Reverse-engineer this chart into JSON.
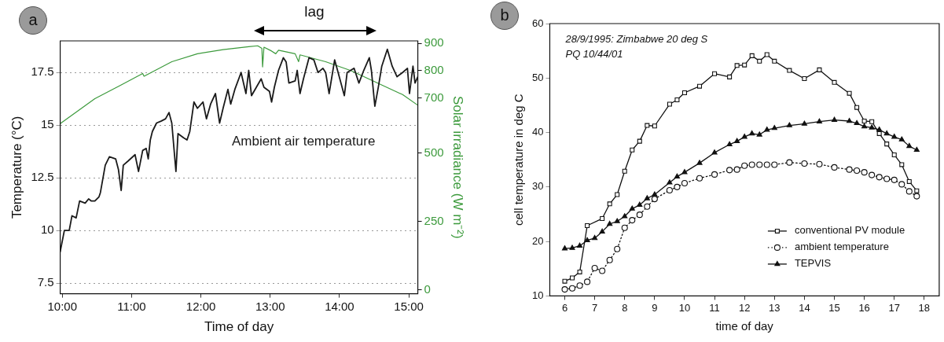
{
  "chart_data": [
    {
      "type": "line",
      "title": "a",
      "xlabel": "Time of day",
      "ylabel": "Temperature (°C)",
      "y2label": "Solar irradiance (W m⁻²)",
      "annotations": [
        "lag"
      ],
      "xlim": [
        9.97,
        15.13
      ],
      "xticks": [
        {
          "value": 10,
          "label": "10:00"
        },
        {
          "value": 11,
          "label": "11:00"
        },
        {
          "value": 12,
          "label": "12:00"
        },
        {
          "value": 13,
          "label": "13:00"
        },
        {
          "value": 14,
          "label": "14:00"
        },
        {
          "value": 15,
          "label": "15:00"
        }
      ],
      "ylim": [
        7,
        19
      ],
      "yticks": [
        7.5,
        10,
        12.5,
        15,
        17.5
      ],
      "y2lim": [
        -14,
        909
      ],
      "y2ticks": [
        0,
        250,
        500,
        700,
        800,
        900
      ],
      "grid": "y",
      "legend": false,
      "marker": "none",
      "series": [
        {
          "name": "Ambient air temperature",
          "color": "#1a1a1a",
          "x": [
            9.97,
            10.03,
            10.1,
            10.14,
            10.2,
            10.25,
            10.33,
            10.38,
            10.42,
            10.47,
            10.53,
            10.55,
            10.62,
            10.68,
            10.77,
            10.81,
            10.85,
            10.88,
            10.95,
            11.05,
            11.1,
            11.16,
            11.21,
            11.24,
            11.27,
            11.3,
            11.36,
            11.43,
            11.49,
            11.54,
            11.58,
            11.64,
            11.67,
            11.75,
            11.8,
            11.84,
            11.9,
            11.95,
            12.03,
            12.08,
            12.14,
            12.21,
            12.27,
            12.32,
            12.39,
            12.43,
            12.49,
            12.58,
            12.65,
            12.69,
            12.73,
            12.8,
            12.87,
            12.91,
            12.99,
            13.02,
            13.06,
            13.12,
            13.19,
            13.23,
            13.27,
            13.36,
            13.39,
            13.43,
            13.48,
            13.56,
            13.63,
            13.69,
            13.76,
            13.8,
            13.85,
            13.93,
            13.98,
            14.07,
            14.11,
            14.21,
            14.28,
            14.35,
            14.43,
            14.46,
            14.51,
            14.56,
            14.61,
            14.69,
            14.76,
            14.83,
            14.91,
            14.98,
            15.01,
            15.06,
            15.09,
            15.13
          ],
          "values": [
            9.0,
            10.0,
            10.0,
            10.7,
            10.6,
            11.4,
            11.3,
            11.5,
            11.4,
            11.4,
            11.6,
            11.8,
            13.1,
            13.5,
            13.4,
            12.9,
            11.9,
            13.1,
            13.3,
            13.6,
            12.8,
            13.8,
            13.9,
            13.4,
            14.3,
            14.7,
            15.1,
            15.2,
            15.3,
            15.6,
            15.1,
            12.8,
            14.6,
            14.4,
            14.3,
            14.7,
            16.1,
            15.8,
            16.1,
            15.3,
            16.0,
            16.5,
            15.1,
            15.8,
            16.7,
            16.0,
            16.7,
            17.5,
            16.5,
            17.6,
            16.4,
            16.8,
            17.2,
            16.8,
            16.6,
            16.1,
            16.8,
            17.6,
            18.2,
            18.0,
            17.0,
            17.1,
            17.6,
            16.5,
            17.2,
            18.2,
            18.1,
            17.5,
            17.7,
            17.5,
            16.5,
            18.1,
            17.5,
            16.4,
            17.5,
            17.7,
            17.0,
            17.6,
            18.2,
            17.6,
            15.9,
            16.8,
            17.8,
            18.6,
            17.8,
            17.3,
            17.5,
            17.7,
            16.5,
            17.8,
            17.0,
            17.3
          ]
        },
        {
          "color": "#3c9a3c",
          "axis": "y2",
          "x": [
            9.97,
            10.47,
            10.84,
            11.16,
            11.18,
            11.58,
            11.95,
            12.32,
            12.69,
            12.82,
            12.88,
            12.89,
            12.91,
            13.02,
            13.08,
            13.12,
            13.36,
            13.41,
            13.43,
            13.8,
            14.17,
            14.54,
            14.91,
            15.13
          ],
          "values": [
            607,
            698,
            747,
            790,
            780,
            833,
            862,
            877,
            888,
            891,
            882,
            814,
            886,
            872,
            862,
            875,
            862,
            833,
            858,
            833,
            800,
            756,
            713,
            674
          ]
        }
      ]
    },
    {
      "type": "line",
      "title": "b",
      "xlabel": "time of day",
      "ylabel": "cell temperature in deg C",
      "annotations": [
        "28/9/1995: Zimbabwe 20 deg S",
        "PQ 10/44/01"
      ],
      "xlim": [
        5.5,
        18.5
      ],
      "xticks": [
        6,
        7,
        8,
        9,
        10,
        11,
        12,
        13,
        14,
        15,
        16,
        17,
        18
      ],
      "ylim": [
        10,
        60
      ],
      "yticks": [
        10,
        20,
        30,
        40,
        50,
        60
      ],
      "legend": "bottom right",
      "series": [
        {
          "name": "conventional PV module",
          "color": "#111111",
          "marker": "square",
          "line_style": "solid",
          "x": [
            6,
            6.25,
            6.5,
            6.75,
            7.25,
            7.5,
            7.75,
            8,
            8.25,
            8.5,
            8.75,
            9,
            9.5,
            9.75,
            10,
            10.5,
            11,
            11.5,
            11.75,
            12,
            12.25,
            12.5,
            12.75,
            13,
            13.5,
            14,
            14.5,
            15,
            15.5,
            15.75,
            16,
            16.25,
            16.5,
            16.75,
            17,
            17.25,
            17.5,
            17.75
          ],
          "values": [
            12.7,
            13.3,
            14.4,
            22.9,
            24.2,
            26.9,
            28.6,
            32.9,
            36.8,
            38.4,
            41.3,
            41.2,
            45.2,
            46.0,
            47.3,
            48.5,
            50.8,
            50.2,
            52.3,
            52.4,
            54.1,
            53.1,
            54.3,
            53.1,
            51.4,
            49.9,
            51.5,
            49.2,
            47.2,
            44.6,
            42.1,
            42.0,
            39.8,
            37.9,
            35.9,
            34.1,
            31.0,
            29.3
          ]
        },
        {
          "name": "ambient temperature",
          "color": "#111111",
          "marker": "circle",
          "line_style": "dotted",
          "x": [
            6,
            6.25,
            6.5,
            6.75,
            7,
            7.25,
            7.5,
            7.75,
            8,
            8.25,
            8.5,
            8.75,
            9,
            9.5,
            9.75,
            10,
            10.5,
            11,
            11.5,
            11.75,
            12,
            12.25,
            12.5,
            12.75,
            13,
            13.5,
            14,
            14.5,
            15,
            15.5,
            15.75,
            16,
            16.25,
            16.5,
            16.75,
            17,
            17.25,
            17.5,
            17.75
          ],
          "values": [
            11.2,
            11.4,
            11.9,
            12.6,
            15.1,
            14.6,
            16.6,
            18.6,
            22.5,
            23.9,
            24.9,
            26.4,
            27.8,
            29.4,
            30.0,
            30.7,
            31.6,
            32.3,
            33.1,
            33.2,
            33.9,
            34.1,
            34.1,
            34.1,
            34.1,
            34.5,
            34.3,
            34.2,
            33.6,
            33.2,
            33.0,
            32.7,
            32.2,
            31.8,
            31.5,
            31.3,
            30.5,
            29.2,
            28.3
          ]
        },
        {
          "name": "TEPVIS",
          "color": "#111111",
          "marker": "triangle",
          "line_style": "solid",
          "x": [
            6,
            6.25,
            6.5,
            6.75,
            7,
            7.25,
            7.5,
            7.75,
            8,
            8.25,
            8.5,
            8.75,
            9,
            9.5,
            9.75,
            10,
            10.5,
            11,
            11.5,
            11.75,
            12,
            12.25,
            12.5,
            12.75,
            13,
            13.5,
            14,
            14.5,
            15,
            15.5,
            15.75,
            16,
            16.25,
            16.5,
            16.75,
            17,
            17.25,
            17.5,
            17.75
          ],
          "values": [
            18.7,
            18.8,
            19.2,
            20.2,
            20.6,
            21.8,
            23.2,
            23.7,
            24.6,
            26.0,
            26.7,
            27.9,
            28.6,
            30.8,
            31.9,
            32.7,
            34.4,
            36.3,
            37.8,
            38.4,
            39.2,
            39.8,
            39.6,
            40.5,
            40.8,
            41.3,
            41.6,
            42.0,
            42.3,
            42.1,
            41.7,
            41.1,
            40.9,
            40.5,
            39.8,
            39.2,
            38.7,
            37.5,
            36.8
          ]
        }
      ]
    }
  ]
}
